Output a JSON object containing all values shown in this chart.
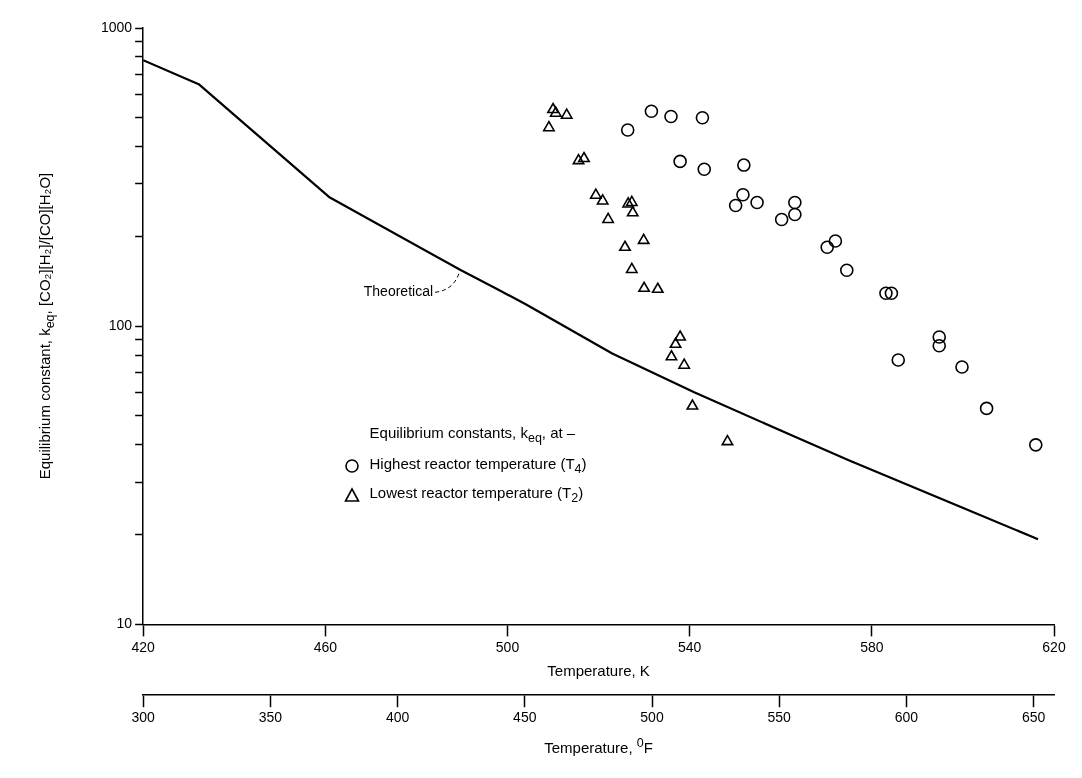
{
  "chart_data": {
    "type": "scatter",
    "xlabel": "Temperature, K",
    "x2label": "Temperature, $^{0}$F",
    "ylabel": "Equilibrium constant, k$_{eq}$, [CO₂][H₂]/[CO][H₂O]",
    "legend_title": "Equilibrium constants, k$_{eq}$, at –",
    "series": [
      {
        "name": "Theoretical",
        "type": "line",
        "marker": "none",
        "color": "#000000",
        "x": [
          420,
          432.2,
          461,
          489.8,
          497.8,
          504.2,
          523,
          541,
          562.5,
          574.8,
          616.5
        ],
        "values": [
          780,
          648,
          270,
          154,
          133,
          118,
          81,
          60,
          43,
          35.6,
          19.3
        ]
      },
      {
        "name": "Highest reactor temperature (T$_{4}$)",
        "type": "scatter",
        "marker": "circle",
        "color": "#000000",
        "x": [
          526.4,
          531.6,
          535.9,
          542.8,
          537.9,
          543.2,
          551.9,
          551.7,
          550.1,
          554.8,
          563.1,
          560.2,
          563.1,
          572,
          570.2,
          574.5,
          583.1,
          584.3,
          594.8,
          594.8,
          585.8,
          599.8,
          605.2,
          616
        ],
        "values": [
          455,
          526,
          505,
          500,
          357,
          336,
          347,
          276,
          254,
          260,
          260,
          228,
          237,
          193,
          184,
          154,
          129,
          129,
          92,
          86,
          77,
          73,
          53,
          40
        ]
      },
      {
        "name": "Lowest reactor temperature (T$_{2}$)",
        "type": "scatter",
        "marker": "triangle",
        "color": "#000000",
        "x": [
          510,
          510.6,
          513,
          509.1,
          515.6,
          516.8,
          519.4,
          520.9,
          522.1,
          526.5,
          527.3,
          527.5,
          525.8,
          529.9,
          527.3,
          530,
          533,
          537.9,
          536.9,
          536,
          538.8,
          540.6,
          548.3
        ],
        "values": [
          533,
          518,
          510,
          463,
          359,
          365,
          275,
          263,
          228,
          257,
          260,
          240,
          184,
          194,
          155,
          134,
          133,
          92,
          87,
          79,
          74,
          54,
          41
        ]
      }
    ],
    "xlim": [
      420,
      620
    ],
    "xticks": [
      420,
      460,
      500,
      540,
      580,
      620
    ],
    "x2lim": [
      300,
      658
    ],
    "x2ticks": [
      300,
      350,
      400,
      450,
      500,
      550,
      600,
      650
    ],
    "ylim": [
      10,
      1000
    ],
    "log": "y",
    "yticks": [
      10,
      {
        "value": 20,
        "label": null
      },
      {
        "value": 30,
        "label": null
      },
      {
        "value": 40,
        "label": null
      },
      {
        "value": 50,
        "label": null
      },
      {
        "value": 60,
        "label": null
      },
      {
        "value": 70,
        "label": null
      },
      {
        "value": 80,
        "label": null
      },
      {
        "value": 90,
        "label": null
      },
      100,
      {
        "value": 200,
        "label": null
      },
      {
        "value": 300,
        "label": null
      },
      {
        "value": 400,
        "label": null
      },
      {
        "value": 500,
        "label": null
      },
      {
        "value": 600,
        "label": null
      },
      {
        "value": 700,
        "label": null
      },
      {
        "value": 800,
        "label": null
      },
      {
        "value": 900,
        "label": null
      },
      1000
    ],
    "grid": false,
    "legend": "bottom"
  }
}
